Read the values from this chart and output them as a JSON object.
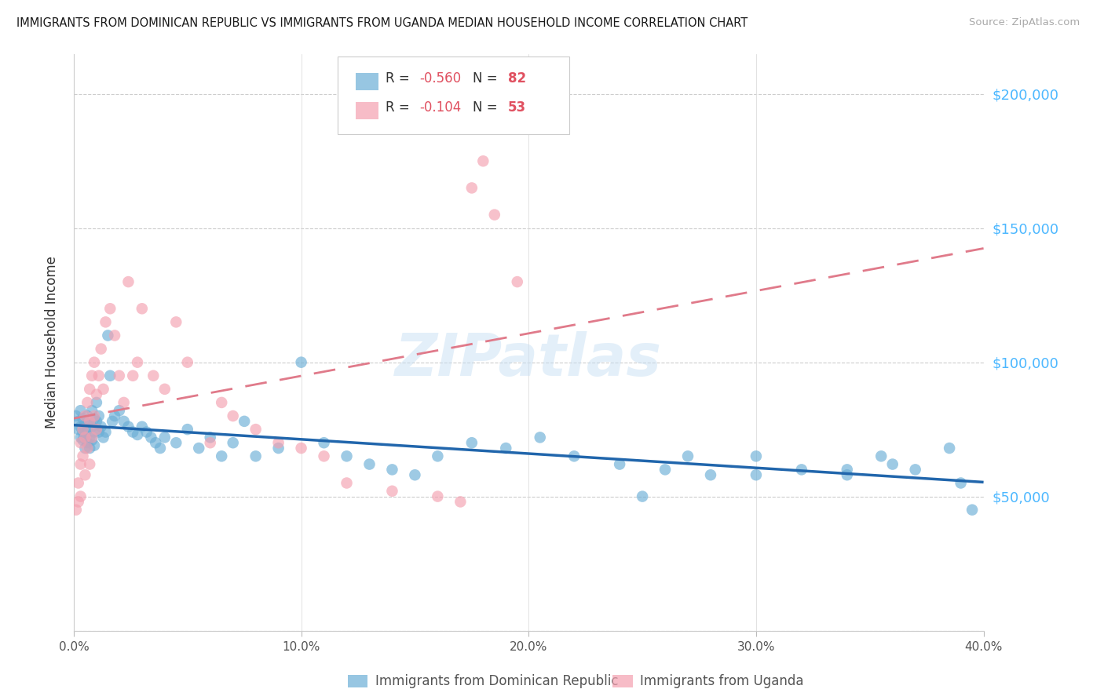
{
  "title": "IMMIGRANTS FROM DOMINICAN REPUBLIC VS IMMIGRANTS FROM UGANDA MEDIAN HOUSEHOLD INCOME CORRELATION CHART",
  "source": "Source: ZipAtlas.com",
  "ylabel": "Median Household Income",
  "series1_label": "Immigrants from Dominican Republic",
  "series2_label": "Immigrants from Uganda",
  "series1_color": "#6baed6",
  "series2_color": "#f4a0b0",
  "series1_R": "-0.560",
  "series1_N": "82",
  "series2_R": "-0.104",
  "series2_N": "53",
  "line1_color": "#2166ac",
  "line2_color": "#e07a8a",
  "watermark": "ZIPatlas",
  "background_color": "#ffffff",
  "xlim": [
    0.0,
    0.4
  ],
  "ylim": [
    0,
    215000
  ],
  "yticks": [
    0,
    50000,
    100000,
    150000,
    200000
  ],
  "ytick_labels_right": [
    "",
    "$50,000",
    "$100,000",
    "$150,000",
    "$200,000"
  ],
  "xticks": [
    0.0,
    0.1,
    0.2,
    0.3,
    0.4
  ],
  "xtick_labels": [
    "0.0%",
    "10.0%",
    "20.0%",
    "30.0%",
    "40.0%"
  ],
  "series1_x": [
    0.001,
    0.002,
    0.002,
    0.003,
    0.003,
    0.003,
    0.004,
    0.004,
    0.004,
    0.005,
    0.005,
    0.005,
    0.006,
    0.006,
    0.006,
    0.007,
    0.007,
    0.007,
    0.008,
    0.008,
    0.008,
    0.009,
    0.009,
    0.009,
    0.01,
    0.01,
    0.011,
    0.011,
    0.012,
    0.013,
    0.014,
    0.015,
    0.016,
    0.017,
    0.018,
    0.02,
    0.022,
    0.024,
    0.026,
    0.028,
    0.03,
    0.032,
    0.034,
    0.036,
    0.038,
    0.04,
    0.045,
    0.05,
    0.055,
    0.06,
    0.065,
    0.07,
    0.075,
    0.08,
    0.09,
    0.1,
    0.11,
    0.12,
    0.13,
    0.14,
    0.15,
    0.16,
    0.175,
    0.19,
    0.205,
    0.22,
    0.24,
    0.26,
    0.28,
    0.3,
    0.32,
    0.34,
    0.355,
    0.37,
    0.385,
    0.39,
    0.36,
    0.34,
    0.3,
    0.27,
    0.25,
    0.395
  ],
  "series1_y": [
    80000,
    78000,
    75000,
    82000,
    76000,
    72000,
    79000,
    74000,
    71000,
    77000,
    73000,
    68000,
    80000,
    75000,
    70000,
    78000,
    72000,
    68000,
    82000,
    76000,
    71000,
    79000,
    74000,
    69000,
    85000,
    78000,
    80000,
    74000,
    76000,
    72000,
    74000,
    110000,
    95000,
    78000,
    80000,
    82000,
    78000,
    76000,
    74000,
    73000,
    76000,
    74000,
    72000,
    70000,
    68000,
    72000,
    70000,
    75000,
    68000,
    72000,
    65000,
    70000,
    78000,
    65000,
    68000,
    100000,
    70000,
    65000,
    62000,
    60000,
    58000,
    65000,
    70000,
    68000,
    72000,
    65000,
    62000,
    60000,
    58000,
    65000,
    60000,
    58000,
    65000,
    60000,
    68000,
    55000,
    62000,
    60000,
    58000,
    65000,
    50000,
    45000
  ],
  "series2_x": [
    0.001,
    0.002,
    0.002,
    0.003,
    0.003,
    0.003,
    0.004,
    0.004,
    0.005,
    0.005,
    0.005,
    0.006,
    0.006,
    0.007,
    0.007,
    0.007,
    0.008,
    0.008,
    0.009,
    0.009,
    0.01,
    0.01,
    0.011,
    0.012,
    0.013,
    0.014,
    0.016,
    0.018,
    0.02,
    0.022,
    0.024,
    0.026,
    0.028,
    0.03,
    0.035,
    0.04,
    0.045,
    0.05,
    0.06,
    0.065,
    0.07,
    0.08,
    0.09,
    0.1,
    0.11,
    0.12,
    0.14,
    0.16,
    0.17,
    0.175,
    0.18,
    0.185,
    0.195
  ],
  "series2_y": [
    45000,
    55000,
    48000,
    62000,
    70000,
    50000,
    75000,
    65000,
    80000,
    58000,
    72000,
    85000,
    68000,
    90000,
    78000,
    62000,
    95000,
    72000,
    100000,
    80000,
    88000,
    75000,
    95000,
    105000,
    90000,
    115000,
    120000,
    110000,
    95000,
    85000,
    130000,
    95000,
    100000,
    120000,
    95000,
    90000,
    115000,
    100000,
    70000,
    85000,
    80000,
    75000,
    70000,
    68000,
    65000,
    55000,
    52000,
    50000,
    48000,
    165000,
    175000,
    155000,
    130000
  ]
}
